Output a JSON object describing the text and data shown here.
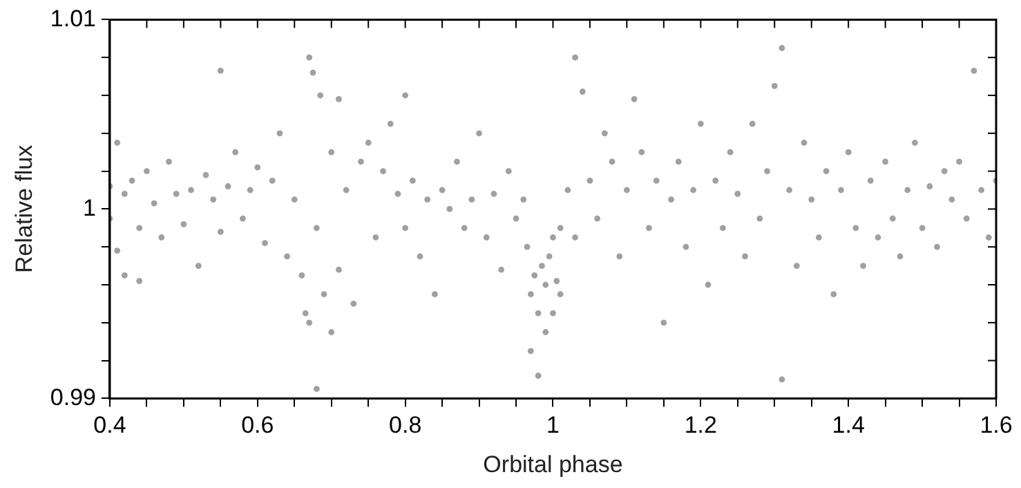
{
  "chart_data": {
    "type": "scatter",
    "xlabel": "Orbital phase",
    "ylabel": "Relative flux",
    "marker": "circle",
    "grid": false,
    "legend": false,
    "xlim": [
      0.4,
      1.6
    ],
    "ylim": [
      0.99,
      1.01
    ],
    "xticks": [
      0.4,
      {
        "value": 0.45,
        "label": null
      },
      {
        "value": 0.5,
        "label": null
      },
      {
        "value": 0.55,
        "label": null
      },
      0.6,
      {
        "value": 0.65,
        "label": null
      },
      {
        "value": 0.7,
        "label": null
      },
      {
        "value": 0.75,
        "label": null
      },
      0.8,
      {
        "value": 0.85,
        "label": null
      },
      {
        "value": 0.9,
        "label": null
      },
      {
        "value": 0.95,
        "label": null
      },
      1,
      {
        "value": 1.05,
        "label": null
      },
      {
        "value": 1.1,
        "label": null
      },
      {
        "value": 1.15,
        "label": null
      },
      1.2,
      {
        "value": 1.25,
        "label": null
      },
      {
        "value": 1.3,
        "label": null
      },
      {
        "value": 1.35,
        "label": null
      },
      1.4,
      {
        "value": 1.45,
        "label": null
      },
      {
        "value": 1.5,
        "label": null
      },
      {
        "value": 1.55,
        "label": null
      },
      1.6
    ],
    "yticks": [
      0.99,
      {
        "value": 0.992,
        "label": null
      },
      {
        "value": 0.994,
        "label": null
      },
      {
        "value": 0.996,
        "label": null
      },
      {
        "value": 0.998,
        "label": null
      },
      1,
      {
        "value": 1.002,
        "label": null
      },
      {
        "value": 1.004,
        "label": null
      },
      {
        "value": 1.006,
        "label": null
      },
      {
        "value": 1.008,
        "label": null
      },
      1.01
    ],
    "series": [
      {
        "color": "#a0a0a0",
        "x": [
          0.4,
          0.4,
          0.41,
          0.41,
          0.42,
          0.42,
          0.43,
          0.44,
          0.44,
          0.45,
          0.46,
          0.47,
          0.48,
          0.49,
          0.5,
          0.51,
          0.52,
          0.53,
          0.54,
          0.55,
          0.55,
          0.56,
          0.57,
          0.58,
          0.59,
          0.6,
          0.61,
          0.62,
          0.63,
          0.64,
          0.65,
          0.66,
          0.665,
          0.67,
          0.67,
          0.675,
          0.68,
          0.68,
          0.685,
          0.69,
          0.7,
          0.7,
          0.71,
          0.71,
          0.72,
          0.73,
          0.74,
          0.75,
          0.76,
          0.77,
          0.78,
          0.79,
          0.8,
          0.8,
          0.81,
          0.82,
          0.83,
          0.84,
          0.85,
          0.86,
          0.87,
          0.88,
          0.89,
          0.9,
          0.91,
          0.92,
          0.93,
          0.94,
          0.95,
          0.96,
          0.965,
          0.97,
          0.97,
          0.975,
          0.98,
          0.98,
          0.985,
          0.99,
          0.99,
          0.995,
          1.0,
          1.0,
          1.005,
          1.01,
          1.01,
          1.02,
          1.03,
          1.03,
          1.04,
          1.05,
          1.06,
          1.07,
          1.08,
          1.09,
          1.1,
          1.11,
          1.12,
          1.13,
          1.14,
          1.15,
          1.16,
          1.17,
          1.18,
          1.19,
          1.2,
          1.21,
          1.22,
          1.23,
          1.24,
          1.25,
          1.26,
          1.27,
          1.28,
          1.29,
          1.3,
          1.31,
          1.31,
          1.32,
          1.33,
          1.34,
          1.35,
          1.36,
          1.37,
          1.38,
          1.39,
          1.4,
          1.41,
          1.42,
          1.43,
          1.44,
          1.45,
          1.46,
          1.47,
          1.48,
          1.49,
          1.5,
          1.51,
          1.52,
          1.53,
          1.54,
          1.55,
          1.56,
          1.57,
          1.58,
          1.59,
          1.6
        ],
        "values": [
          1.0012,
          0.9995,
          1.0035,
          0.9978,
          1.0008,
          0.9965,
          1.0015,
          0.999,
          0.9962,
          1.002,
          1.0003,
          0.9985,
          1.0025,
          1.0008,
          0.9992,
          1.001,
          0.997,
          1.0018,
          1.0005,
          1.0073,
          0.9988,
          1.0012,
          1.003,
          0.9995,
          1.001,
          1.0022,
          0.9982,
          1.0015,
          1.004,
          0.9975,
          1.0005,
          0.9965,
          0.9945,
          1.008,
          0.994,
          1.0072,
          0.999,
          0.9905,
          1.006,
          0.9955,
          1.003,
          0.9935,
          1.0058,
          0.9968,
          1.001,
          0.995,
          1.0025,
          1.0035,
          0.9985,
          1.002,
          1.0045,
          1.0008,
          1.006,
          0.999,
          1.0015,
          0.9975,
          1.0005,
          0.9955,
          1.001,
          1.0,
          1.0025,
          0.999,
          1.0005,
          1.004,
          0.9985,
          1.0008,
          0.9968,
          1.002,
          0.9995,
          1.0005,
          0.998,
          0.9955,
          0.9925,
          0.9965,
          0.9945,
          0.9912,
          0.997,
          0.9935,
          0.996,
          0.9975,
          0.9945,
          0.9985,
          0.9962,
          0.999,
          0.9955,
          1.001,
          1.008,
          0.9985,
          1.0062,
          1.0015,
          0.9995,
          1.004,
          1.0025,
          0.9975,
          1.001,
          1.0058,
          1.003,
          0.999,
          1.0015,
          0.994,
          1.0005,
          1.0025,
          0.998,
          1.001,
          1.0045,
          0.996,
          1.0015,
          0.999,
          1.003,
          1.0008,
          0.9975,
          1.0045,
          0.9995,
          1.002,
          1.0065,
          1.0085,
          0.991,
          1.001,
          0.997,
          1.0035,
          1.0005,
          0.9985,
          1.002,
          0.9955,
          1.001,
          1.003,
          0.999,
          0.997,
          1.0015,
          0.9985,
          1.0025,
          0.9995,
          0.9975,
          1.001,
          1.0035,
          0.999,
          1.0012,
          0.998,
          1.002,
          1.0005,
          1.0025,
          0.9995,
          1.0073,
          1.001,
          0.9985,
          1.0015
        ]
      }
    ]
  }
}
